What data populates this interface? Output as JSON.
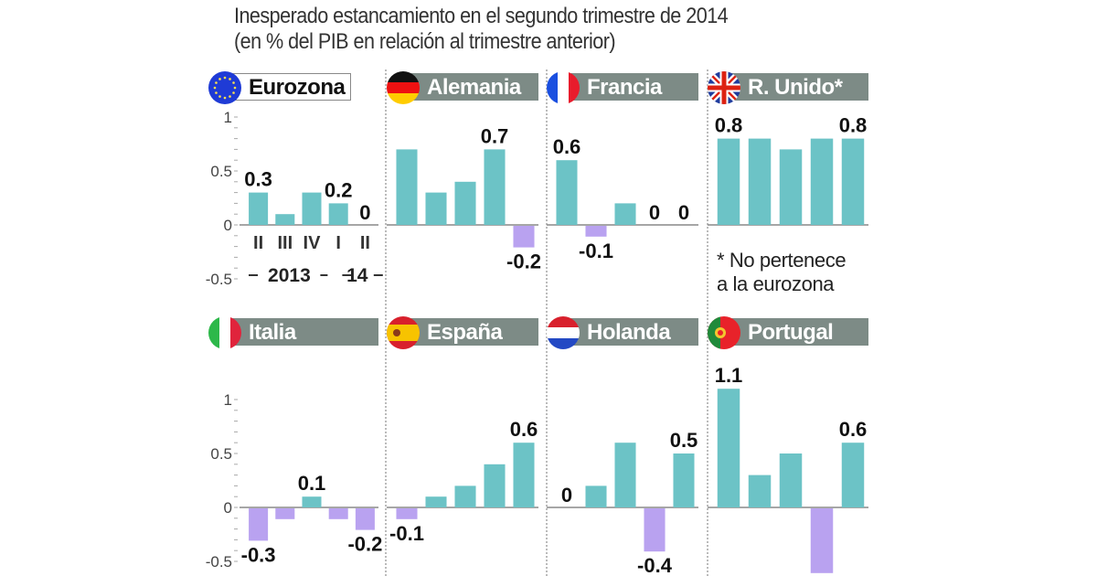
{
  "title_line1": "Inesperado estancamiento en el segundo trimestre de 2014",
  "title_line2": "(en % del PIB en relación al trimestre anterior)",
  "note": [
    "* No pertenece",
    "a la eurozona"
  ],
  "colors": {
    "positive": "#6cc3c6",
    "negative": "#b9a2f0",
    "header": "#7d8b86"
  },
  "chart_data": {
    "type": "bar",
    "title": "Inesperado estancamiento en el segundo trimestre de 2014",
    "subtitle": "(en % del PIB en relación al trimestre anterior)",
    "categories": [
      "II",
      "III",
      "IV",
      "I",
      "II"
    ],
    "category_groups": [
      "2013",
      "14"
    ],
    "yticks": [
      "1",
      "0.5",
      "0",
      "-0.5"
    ],
    "ylim": [
      -0.6,
      1.1
    ],
    "ylabel": "% del PIB",
    "series": [
      {
        "name": "Eurozona",
        "flag": "eu",
        "values": [
          0.3,
          0.1,
          0.3,
          0.2,
          0
        ],
        "labels": [
          "0.3",
          "",
          "",
          "0.2",
          "0"
        ]
      },
      {
        "name": "Alemania",
        "flag": "de",
        "values": [
          0.7,
          0.3,
          0.4,
          0.7,
          -0.2
        ],
        "labels": [
          "",
          "",
          "",
          "0.7",
          "-0.2"
        ]
      },
      {
        "name": "Francia",
        "flag": "fr",
        "values": [
          0.6,
          -0.1,
          0.2,
          0,
          0
        ],
        "labels": [
          "0.6",
          "-0.1",
          "",
          "0",
          "0"
        ]
      },
      {
        "name": "R. Unido*",
        "flag": "uk",
        "values": [
          0.8,
          0.8,
          0.7,
          0.8,
          0.8
        ],
        "labels": [
          "0.8",
          "",
          "",
          "",
          "0.8"
        ]
      },
      {
        "name": "Italia",
        "flag": "it",
        "values": [
          -0.3,
          -0.1,
          0.1,
          -0.1,
          -0.2
        ],
        "labels": [
          "-0.3",
          "",
          "0.1",
          "",
          "-0.2"
        ]
      },
      {
        "name": "España",
        "flag": "es",
        "values": [
          -0.1,
          0.1,
          0.2,
          0.4,
          0.6
        ],
        "labels": [
          "-0.1",
          "",
          "",
          "",
          "0.6"
        ]
      },
      {
        "name": "Holanda",
        "flag": "nl",
        "values": [
          0,
          0.2,
          0.6,
          -0.4,
          0.5
        ],
        "labels": [
          "0",
          "",
          "",
          "-0.4",
          "0.5"
        ]
      },
      {
        "name": "Portugal",
        "flag": "pt",
        "values": [
          1.1,
          0.3,
          0.5,
          -0.6,
          0.6
        ],
        "labels": [
          "1.1",
          "",
          "",
          "",
          "0.6"
        ]
      }
    ]
  }
}
